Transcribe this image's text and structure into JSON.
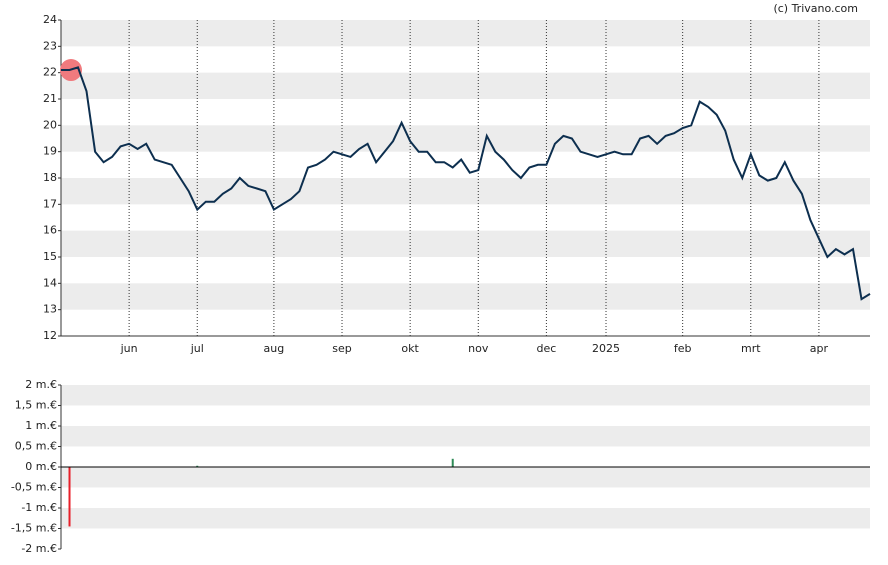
{
  "watermark": "(c) Trivano.com",
  "chart_data": [
    {
      "type": "line",
      "color": "#0d2f4f",
      "start_marker_color": "#f07a7e",
      "ylim": [
        12,
        24
      ],
      "yticks": [
        12,
        13,
        14,
        15,
        16,
        17,
        18,
        19,
        20,
        21,
        22,
        23,
        24
      ],
      "grid": true,
      "categories": [
        null,
        null,
        null,
        null,
        null,
        null,
        null,
        null,
        "jun",
        null,
        null,
        null,
        null,
        null,
        null,
        null,
        "jul",
        null,
        null,
        null,
        null,
        null,
        null,
        null,
        null,
        "aug",
        null,
        null,
        null,
        null,
        null,
        null,
        null,
        "sep",
        null,
        null,
        null,
        null,
        null,
        null,
        null,
        "okt",
        null,
        null,
        null,
        null,
        null,
        null,
        null,
        "nov",
        null,
        null,
        null,
        null,
        null,
        null,
        null,
        "dec",
        null,
        null,
        null,
        null,
        null,
        null,
        "2025",
        null,
        null,
        null,
        null,
        null,
        null,
        null,
        null,
        "feb",
        null,
        null,
        null,
        null,
        null,
        null,
        null,
        "mrt",
        null,
        null,
        null,
        null,
        null,
        null,
        null,
        "apr",
        null,
        null,
        null,
        null,
        null,
        null
      ],
      "values": [
        22.1,
        22.1,
        22.2,
        21.3,
        19.0,
        18.6,
        18.8,
        19.2,
        19.3,
        19.1,
        19.3,
        18.7,
        18.6,
        18.5,
        18.0,
        17.5,
        16.8,
        17.1,
        17.1,
        17.4,
        17.6,
        18.0,
        17.7,
        17.6,
        17.5,
        16.8,
        17.0,
        17.2,
        17.5,
        18.4,
        18.5,
        18.7,
        19.0,
        18.9,
        18.8,
        19.1,
        19.3,
        18.6,
        19.0,
        19.4,
        20.1,
        19.4,
        19.0,
        19.0,
        18.6,
        18.6,
        18.4,
        18.7,
        18.2,
        18.3,
        19.6,
        19.0,
        18.7,
        18.3,
        18.0,
        18.4,
        18.5,
        18.5,
        19.3,
        19.6,
        19.5,
        19.0,
        18.9,
        18.8,
        18.9,
        19.0,
        18.9,
        18.9,
        19.5,
        19.6,
        19.3,
        19.6,
        19.7,
        19.9,
        20.0,
        20.9,
        20.7,
        20.4,
        19.8,
        18.7,
        18.0,
        18.9,
        18.1,
        17.9,
        18.0,
        18.6,
        17.9,
        17.4,
        16.4,
        15.7,
        15.0,
        15.3,
        15.1,
        15.3,
        13.4,
        13.6
      ]
    },
    {
      "type": "bar",
      "positive_color": "#2e8b57",
      "negative_color": "#e8202a",
      "ylim": [
        -2000000,
        2000000
      ],
      "grid": true,
      "yticks": [
        {
          "value": -2000000,
          "label": "-2 m.€"
        },
        {
          "value": -1500000,
          "label": "-1,5 m.€"
        },
        {
          "value": -1000000,
          "label": "-1 m.€"
        },
        {
          "value": -500000,
          "label": "-0,5 m.€"
        },
        {
          "value": 0,
          "label": "0 m.€"
        },
        {
          "value": 500000,
          "label": "0,5 m.€"
        },
        {
          "value": 1000000,
          "label": "1 m.€"
        },
        {
          "value": 1500000,
          "label": "1,5 m.€"
        },
        {
          "value": 2000000,
          "label": "2 m.€"
        }
      ],
      "values": [
        null,
        -1450000,
        null,
        null,
        null,
        null,
        null,
        null,
        null,
        null,
        null,
        null,
        null,
        null,
        null,
        null,
        30000,
        null,
        null,
        null,
        null,
        null,
        null,
        null,
        null,
        null,
        null,
        null,
        null,
        null,
        null,
        null,
        null,
        null,
        null,
        null,
        null,
        null,
        null,
        null,
        null,
        null,
        null,
        null,
        null,
        null,
        200000,
        null,
        null,
        null,
        null,
        null,
        null,
        null,
        null,
        null,
        null,
        null,
        null,
        null,
        null,
        null,
        null,
        null,
        null,
        null,
        null,
        null,
        null,
        null,
        null,
        null,
        null,
        null,
        null,
        null,
        null,
        null,
        null,
        null,
        null,
        null,
        null,
        null,
        null,
        null,
        null,
        null,
        null,
        null,
        null,
        null,
        null,
        null,
        null,
        null
      ]
    }
  ]
}
